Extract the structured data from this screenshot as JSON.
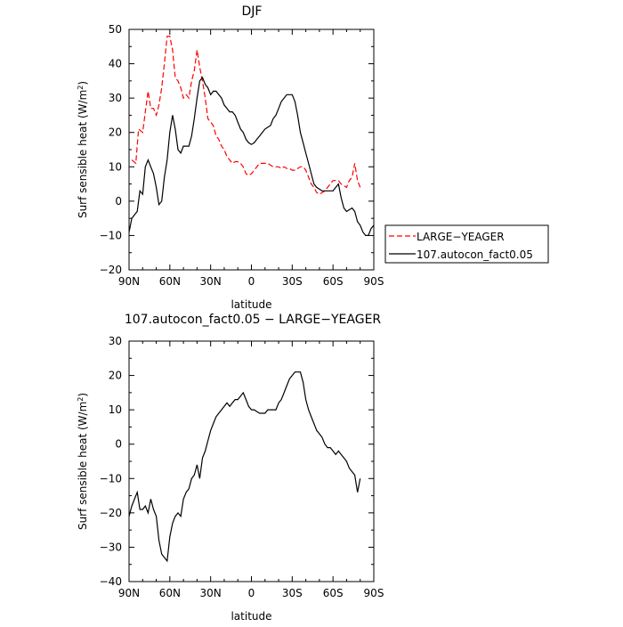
{
  "chart_data": [
    {
      "type": "line",
      "title": "DJF",
      "xlabel": "latitude",
      "ylabel": "Surf sensible heat (W/m",
      "ylabel_sup": "2",
      "ylabel_close": ")",
      "xlim": [
        90,
        -90
      ],
      "ylim": [
        -20,
        50
      ],
      "xticks": [
        90,
        60,
        30,
        0,
        -30,
        -60,
        -90
      ],
      "xtick_labels": [
        "90N",
        "60N",
        "30N",
        "0",
        "30S",
        "60S",
        "90S"
      ],
      "yticks": [
        -20,
        -10,
        0,
        10,
        20,
        30,
        40,
        50
      ],
      "ytick_labels": [
        "−20",
        "−10",
        "0",
        "10",
        "20",
        "30",
        "40",
        "50"
      ],
      "grid": false,
      "legend_position": "right",
      "series": [
        {
          "name": "LARGE−YEAGER",
          "color": "#ff0000",
          "dash": "dashed",
          "x": [
            88,
            85,
            83,
            80,
            78,
            76,
            74,
            72,
            70,
            68,
            66,
            64,
            62,
            60,
            58,
            56,
            54,
            52,
            50,
            48,
            46,
            44,
            42,
            40,
            38,
            36,
            34,
            32,
            30,
            28,
            26,
            24,
            22,
            20,
            18,
            16,
            14,
            12,
            10,
            8,
            6,
            4,
            2,
            0,
            -2,
            -4,
            -6,
            -8,
            -10,
            -12,
            -14,
            -16,
            -18,
            -20,
            -22,
            -24,
            -26,
            -28,
            -30,
            -32,
            -34,
            -36,
            -38,
            -40,
            -42,
            -44,
            -46,
            -48,
            -50,
            -52,
            -54,
            -56,
            -58,
            -60,
            -62,
            -64,
            -66,
            -68,
            -70,
            -72,
            -74,
            -76,
            -78,
            -80
          ],
          "y": [
            12,
            11,
            21,
            20,
            26,
            32,
            27,
            27,
            25,
            28,
            33,
            40,
            48,
            48,
            44,
            36,
            35,
            33,
            30,
            31,
            30,
            35,
            38,
            44,
            39,
            35,
            30,
            24,
            23,
            22,
            19,
            18,
            16,
            15,
            13,
            12,
            11,
            11.5,
            11.5,
            11,
            10,
            8,
            7.5,
            8,
            9,
            10,
            11,
            11,
            11,
            11,
            10.5,
            10,
            10,
            10,
            9.5,
            10,
            9.5,
            9.5,
            9,
            9,
            9.5,
            10,
            10,
            9,
            7,
            5,
            4,
            2.5,
            2,
            2.5,
            3,
            4,
            5,
            6,
            6,
            6,
            5,
            4.5,
            4,
            6,
            7,
            11,
            6,
            4
          ]
        },
        {
          "name": "107.autocon_fact0.05",
          "color": "#000000",
          "dash": "solid",
          "x": [
            90,
            88,
            86,
            84,
            82,
            80,
            78,
            76,
            74,
            72,
            70,
            68,
            66,
            64,
            62,
            60,
            58,
            56,
            54,
            52,
            50,
            48,
            46,
            44,
            42,
            40,
            38,
            36,
            34,
            32,
            30,
            28,
            26,
            24,
            22,
            20,
            18,
            16,
            14,
            12,
            10,
            8,
            6,
            4,
            2,
            0,
            -2,
            -4,
            -6,
            -8,
            -10,
            -12,
            -14,
            -16,
            -18,
            -20,
            -22,
            -24,
            -26,
            -28,
            -30,
            -32,
            -34,
            -36,
            -38,
            -40,
            -42,
            -44,
            -46,
            -48,
            -50,
            -52,
            -54,
            -56,
            -58,
            -60,
            -62,
            -64,
            -66,
            -68,
            -70,
            -72,
            -74,
            -76,
            -78,
            -80,
            -82,
            -84,
            -86,
            -88,
            -90
          ],
          "y": [
            -9,
            -5,
            -4,
            -3,
            3,
            2,
            10,
            12,
            10,
            8,
            4,
            -1,
            0,
            7,
            12,
            20,
            25,
            21,
            15,
            14,
            16,
            16,
            16,
            19,
            24,
            30,
            35,
            36,
            34,
            33,
            31,
            32,
            32,
            31,
            30,
            28,
            27,
            26,
            26,
            25,
            23,
            21,
            20,
            18,
            17,
            16.5,
            17,
            18,
            19,
            20,
            21,
            21.5,
            22,
            24,
            25,
            27,
            29,
            30,
            31,
            31,
            31,
            29,
            25,
            20,
            17,
            14,
            11,
            8,
            5,
            4,
            3.5,
            3,
            3,
            3,
            3,
            3,
            4,
            5,
            1,
            -2,
            -3,
            -2.5,
            -2,
            -3,
            -6,
            -7,
            -9,
            -10,
            -10,
            -8,
            -7
          ]
        }
      ]
    },
    {
      "type": "line",
      "title": "107.autocon_fact0.05 − LARGE−YEAGER",
      "xlabel": "latitude",
      "ylabel": "Surf sensible heat (W/m",
      "ylabel_sup": "2",
      "ylabel_close": ")",
      "xlim": [
        90,
        -90
      ],
      "ylim": [
        -40,
        30
      ],
      "xticks": [
        90,
        60,
        30,
        0,
        -30,
        -60,
        -90
      ],
      "xtick_labels": [
        "90N",
        "60N",
        "30N",
        "0",
        "30S",
        "60S",
        "90S"
      ],
      "yticks": [
        -40,
        -30,
        -20,
        -10,
        0,
        10,
        20,
        30
      ],
      "ytick_labels": [
        "−40",
        "−30",
        "−20",
        "−10",
        "0",
        "10",
        "20",
        "30"
      ],
      "grid": false,
      "series": [
        {
          "color": "#000000",
          "dash": "solid",
          "x": [
            90,
            88,
            86,
            84,
            82,
            80,
            78,
            76,
            74,
            72,
            70,
            68,
            66,
            64,
            62,
            60,
            58,
            56,
            54,
            52,
            50,
            48,
            46,
            44,
            42,
            40,
            38,
            36,
            34,
            32,
            30,
            28,
            26,
            24,
            22,
            20,
            18,
            16,
            14,
            12,
            10,
            8,
            6,
            4,
            2,
            0,
            -2,
            -4,
            -6,
            -8,
            -10,
            -12,
            -14,
            -16,
            -18,
            -20,
            -22,
            -24,
            -26,
            -28,
            -30,
            -32,
            -34,
            -36,
            -38,
            -40,
            -42,
            -44,
            -46,
            -48,
            -50,
            -52,
            -54,
            -56,
            -58,
            -60,
            -62,
            -64,
            -66,
            -68,
            -70,
            -72,
            -74,
            -76,
            -78,
            -80
          ],
          "y": [
            -21,
            -18,
            -16,
            -14,
            -19,
            -19,
            -18,
            -20,
            -16,
            -19,
            -21,
            -28,
            -32,
            -33,
            -34,
            -27,
            -23,
            -21,
            -20,
            -21,
            -16,
            -14,
            -13,
            -10,
            -9,
            -6,
            -10,
            -4,
            -2,
            1,
            4,
            6,
            8,
            9,
            10,
            11,
            12,
            11,
            12,
            13,
            13,
            14,
            15,
            13,
            11,
            10,
            10,
            9.5,
            9,
            9,
            9,
            10,
            10,
            10,
            10,
            12,
            13,
            15,
            17,
            19,
            20,
            21,
            21,
            21,
            18,
            13,
            10,
            8,
            6,
            4,
            3,
            2,
            0,
            -1,
            -1,
            -2,
            -3,
            -2,
            -3,
            -4,
            -5,
            -7,
            -8,
            -9,
            -14,
            -10
          ]
        }
      ]
    }
  ]
}
